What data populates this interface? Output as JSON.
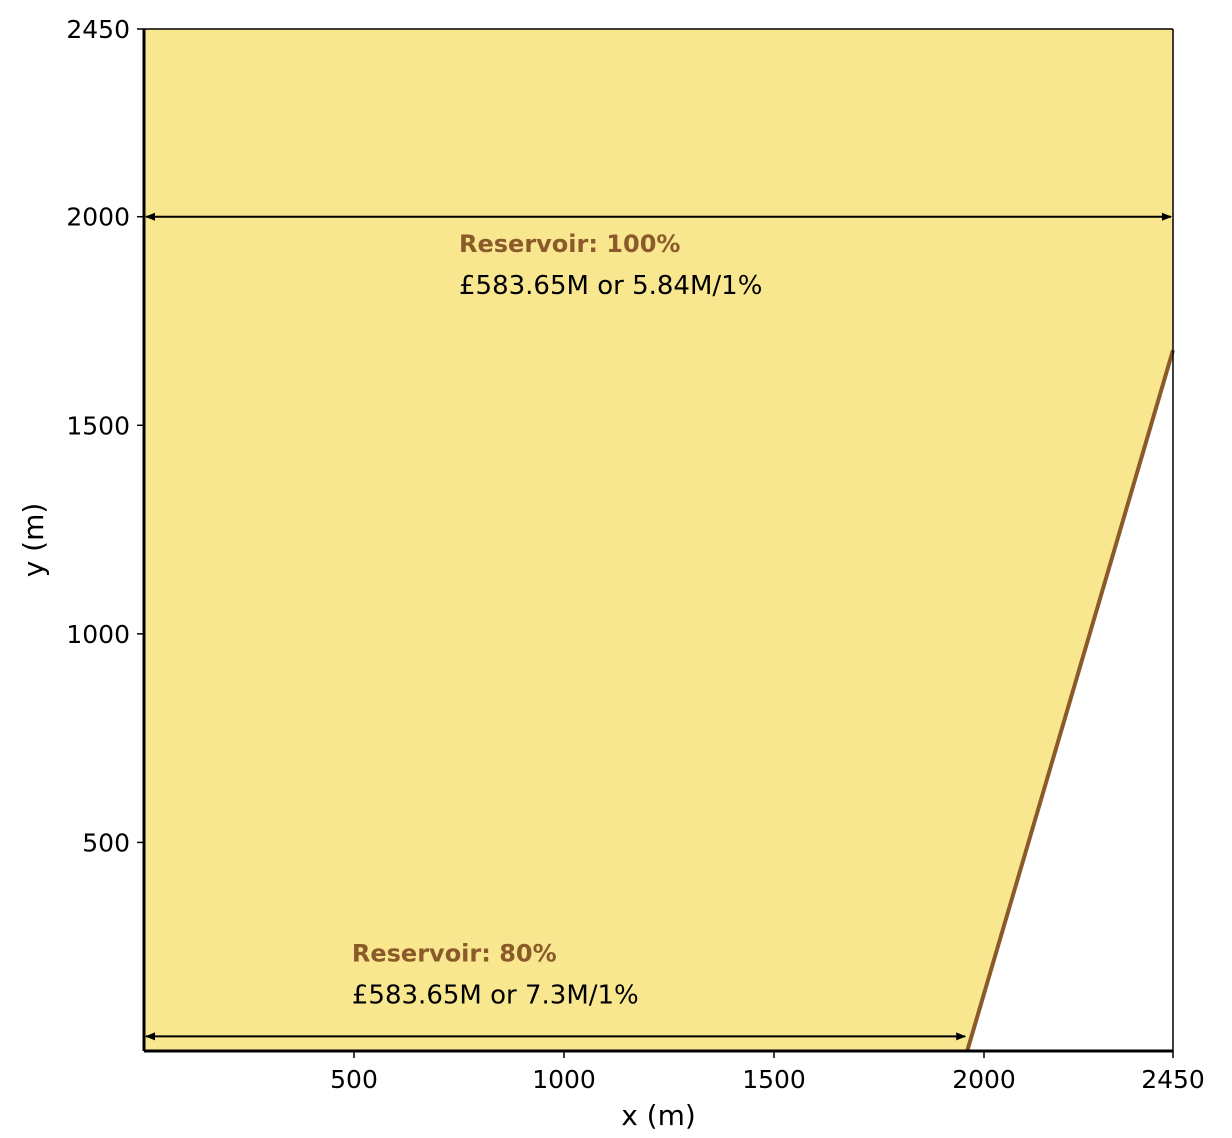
{
  "chart_data": {
    "type": "area",
    "xlabel": "x (m)",
    "ylabel": "y (m)",
    "xlim": [
      0,
      2450
    ],
    "ylim": [
      0,
      2450
    ],
    "x_ticks": [
      500,
      1000,
      1500,
      2000,
      2450
    ],
    "y_ticks": [
      500,
      1000,
      1500,
      2000,
      2450
    ],
    "grid": false,
    "reservoir_polygon": [
      [
        0,
        0
      ],
      [
        1960,
        0
      ],
      [
        2450,
        1680
      ],
      [
        2450,
        2450
      ],
      [
        0,
        2450
      ]
    ],
    "boundary_line": {
      "x": [
        1960,
        2450
      ],
      "y": [
        0,
        1680
      ]
    },
    "annotations": [
      {
        "title": "Reservoir: 100%",
        "value": "£583.65M or 5.84M/1%",
        "label_x": 750,
        "label_y": 1915,
        "arrow": {
          "x_from": 0,
          "x_to": 2450,
          "y": 2000
        }
      },
      {
        "title": "Reservoir: 80%",
        "value": "£583.65M or 7.3M/1%",
        "label_x": 495,
        "label_y": 215,
        "arrow": {
          "x_from": 0,
          "x_to": 1960,
          "y": 35
        }
      }
    ],
    "colors": {
      "fill": "#f9e78f",
      "boundary": "#8b5a2b",
      "annotation_title": "#8b5a2b",
      "arrow": "#000000",
      "axes": "#000000"
    }
  }
}
